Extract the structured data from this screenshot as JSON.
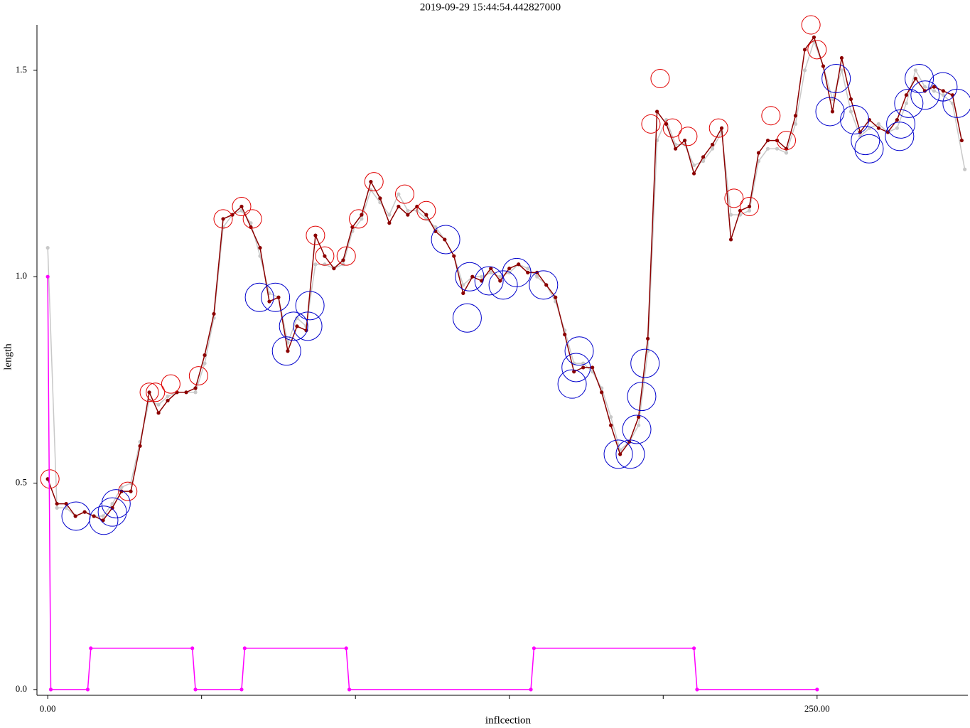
{
  "chart_data": {
    "type": "line",
    "title": "2019-09-29 15:44:54.442827000",
    "x_label": "inflcection",
    "y_label": "length",
    "xlim": [
      -3.5,
      299
    ],
    "ylim": [
      -0.014,
      1.61
    ],
    "xticks": [
      {
        "value": 0,
        "label": "0.00"
      },
      {
        "value": 250,
        "label": "250.00"
      }
    ],
    "xminorticks": [
      50,
      100,
      150,
      200
    ],
    "yticks": [
      {
        "value": 0,
        "label": "0.0"
      },
      {
        "value": 0.5,
        "label": "0.5"
      },
      {
        "value": 1,
        "label": "1.0"
      },
      {
        "value": 1.5,
        "label": "1.5"
      }
    ],
    "series": [
      {
        "style": "line-dots",
        "color": "#c8c8c8",
        "x": [
          0,
          3,
          6,
          9,
          12,
          15,
          18,
          21,
          24,
          27,
          30,
          33,
          36,
          39,
          42,
          45,
          48,
          51,
          54,
          57,
          60,
          63,
          66,
          69,
          72,
          75,
          78,
          81,
          84,
          87,
          90,
          93,
          96,
          99,
          102,
          105,
          108,
          111,
          114,
          117,
          120,
          123,
          126,
          129,
          132,
          135,
          138,
          141,
          144,
          147,
          150,
          153,
          156,
          159,
          162,
          165,
          168,
          171,
          174,
          177,
          180,
          183,
          186,
          189,
          192,
          195,
          198,
          201,
          204,
          207,
          210,
          213,
          216,
          219,
          222,
          225,
          228,
          231,
          234,
          237,
          240,
          243,
          246,
          249,
          252,
          255,
          258,
          261,
          264,
          267,
          270,
          273,
          276,
          279,
          282,
          285,
          288,
          291,
          294,
          298
        ],
        "values": [
          1.07,
          0.44,
          0.44,
          0.42,
          0.43,
          0.42,
          0.42,
          0.45,
          0.49,
          0.5,
          0.6,
          0.7,
          0.69,
          0.71,
          0.72,
          0.72,
          0.72,
          0.79,
          0.9,
          1.12,
          1.15,
          1.16,
          1.13,
          1.05,
          0.96,
          0.95,
          0.84,
          0.9,
          0.88,
          1.03,
          1.03,
          1.02,
          1.03,
          1.11,
          1.14,
          1.21,
          1.18,
          1.15,
          1.2,
          1.16,
          1.16,
          1.14,
          1.12,
          1.09,
          1.05,
          0.98,
          1.0,
          1.0,
          1.01,
          1.0,
          1.01,
          1.03,
          1.02,
          1.0,
          0.98,
          0.94,
          0.87,
          0.79,
          0.79,
          0.77,
          0.73,
          0.66,
          0.58,
          0.6,
          0.64,
          0.82,
          1.33,
          1.38,
          1.32,
          1.32,
          1.27,
          1.28,
          1.31,
          1.35,
          1.15,
          1.15,
          1.16,
          1.28,
          1.31,
          1.31,
          1.3,
          1.37,
          1.5,
          1.57,
          1.51,
          1.43,
          1.5,
          1.4,
          1.34,
          1.36,
          1.37,
          1.35,
          1.36,
          1.42,
          1.5,
          1.46,
          1.45,
          1.44,
          1.42,
          1.26
        ]
      },
      {
        "style": "line-dots",
        "color": "#8b0000",
        "x": [
          0,
          3,
          6,
          9,
          12,
          15,
          18,
          21,
          24,
          27,
          30,
          33,
          36,
          39,
          42,
          45,
          48,
          51,
          54,
          57,
          60,
          63,
          66,
          69,
          72,
          75,
          78,
          81,
          84,
          87,
          90,
          93,
          96,
          99,
          102,
          105,
          108,
          111,
          114,
          117,
          120,
          123,
          126,
          129,
          132,
          135,
          138,
          141,
          144,
          147,
          150,
          153,
          156,
          159,
          162,
          165,
          168,
          171,
          174,
          177,
          180,
          183,
          186,
          189,
          192,
          195,
          198,
          201,
          204,
          207,
          210,
          213,
          216,
          219,
          222,
          225,
          228,
          231,
          234,
          237,
          240,
          243,
          246,
          249,
          252,
          255,
          258,
          261,
          264,
          267,
          270,
          273,
          276,
          279,
          282,
          285,
          288,
          291,
          294,
          297
        ],
        "values": [
          0.51,
          0.45,
          0.45,
          0.42,
          0.43,
          0.42,
          0.41,
          0.44,
          0.48,
          0.48,
          0.59,
          0.72,
          0.67,
          0.7,
          0.72,
          0.72,
          0.73,
          0.81,
          0.91,
          1.14,
          1.15,
          1.17,
          1.12,
          1.07,
          0.94,
          0.95,
          0.82,
          0.88,
          0.87,
          1.1,
          1.05,
          1.02,
          1.04,
          1.12,
          1.15,
          1.23,
          1.19,
          1.13,
          1.17,
          1.15,
          1.17,
          1.15,
          1.11,
          1.09,
          1.05,
          0.96,
          1.0,
          0.99,
          1.02,
          0.99,
          1.02,
          1.03,
          1.01,
          1.01,
          0.98,
          0.95,
          0.86,
          0.77,
          0.78,
          0.78,
          0.72,
          0.64,
          0.57,
          0.6,
          0.66,
          0.85,
          1.4,
          1.37,
          1.31,
          1.33,
          1.25,
          1.29,
          1.32,
          1.36,
          1.09,
          1.16,
          1.17,
          1.3,
          1.33,
          1.33,
          1.31,
          1.39,
          1.55,
          1.58,
          1.51,
          1.4,
          1.53,
          1.43,
          1.35,
          1.38,
          1.36,
          1.35,
          1.38,
          1.44,
          1.48,
          1.45,
          1.46,
          1.45,
          1.44,
          1.33
        ]
      },
      {
        "style": "small-circles",
        "color": "#e00000",
        "x": [
          0.7,
          26,
          33,
          35,
          40,
          49,
          57,
          63,
          66.5,
          87,
          90,
          97,
          101,
          106,
          116,
          123,
          196,
          199,
          203,
          208,
          218,
          223,
          228,
          235,
          240,
          248,
          250
        ],
        "values": [
          0.51,
          0.48,
          0.72,
          0.72,
          0.74,
          0.76,
          1.14,
          1.17,
          1.14,
          1.1,
          1.05,
          1.05,
          1.14,
          1.23,
          1.2,
          1.16,
          1.37,
          1.48,
          1.36,
          1.34,
          1.36,
          1.19,
          1.17,
          1.39,
          1.33,
          1.61,
          1.55
        ]
      },
      {
        "style": "large-circles",
        "color": "#0000cc",
        "x": [
          9.2,
          18.2,
          21,
          22.2,
          68.8,
          74,
          77.6,
          79.9,
          84.5,
          85.2,
          129.3,
          136.3,
          137.1,
          143.4,
          148,
          152.4,
          161.1,
          170.4,
          171.7,
          172.7,
          185.4,
          189.3,
          191.4,
          193,
          194.1,
          254.2,
          256.2,
          262.2,
          265.7,
          266.9,
          276.8,
          277.2,
          279.8,
          283.2,
          285.1,
          290.9,
          295.5
        ],
        "values": [
          0.42,
          0.41,
          0.43,
          0.45,
          0.95,
          0.95,
          0.82,
          0.88,
          0.88,
          0.93,
          1.09,
          0.9,
          1.0,
          0.99,
          0.98,
          1.01,
          0.98,
          0.74,
          0.78,
          0.82,
          0.57,
          0.57,
          0.63,
          0.71,
          0.79,
          1.4,
          1.48,
          1.38,
          1.33,
          1.31,
          1.34,
          1.37,
          1.42,
          1.48,
          1.44,
          1.46,
          1.42
        ]
      },
      {
        "style": "line-dots",
        "color": "#ff00ff",
        "x": [
          0,
          1,
          13,
          14,
          47,
          48,
          63,
          64,
          97,
          98,
          157,
          158,
          210,
          211,
          250
        ],
        "values": [
          1,
          0,
          0,
          0.1,
          0.1,
          0,
          0,
          0.1,
          0.1,
          0,
          0,
          0.1,
          0.1,
          0,
          0
        ]
      }
    ]
  }
}
